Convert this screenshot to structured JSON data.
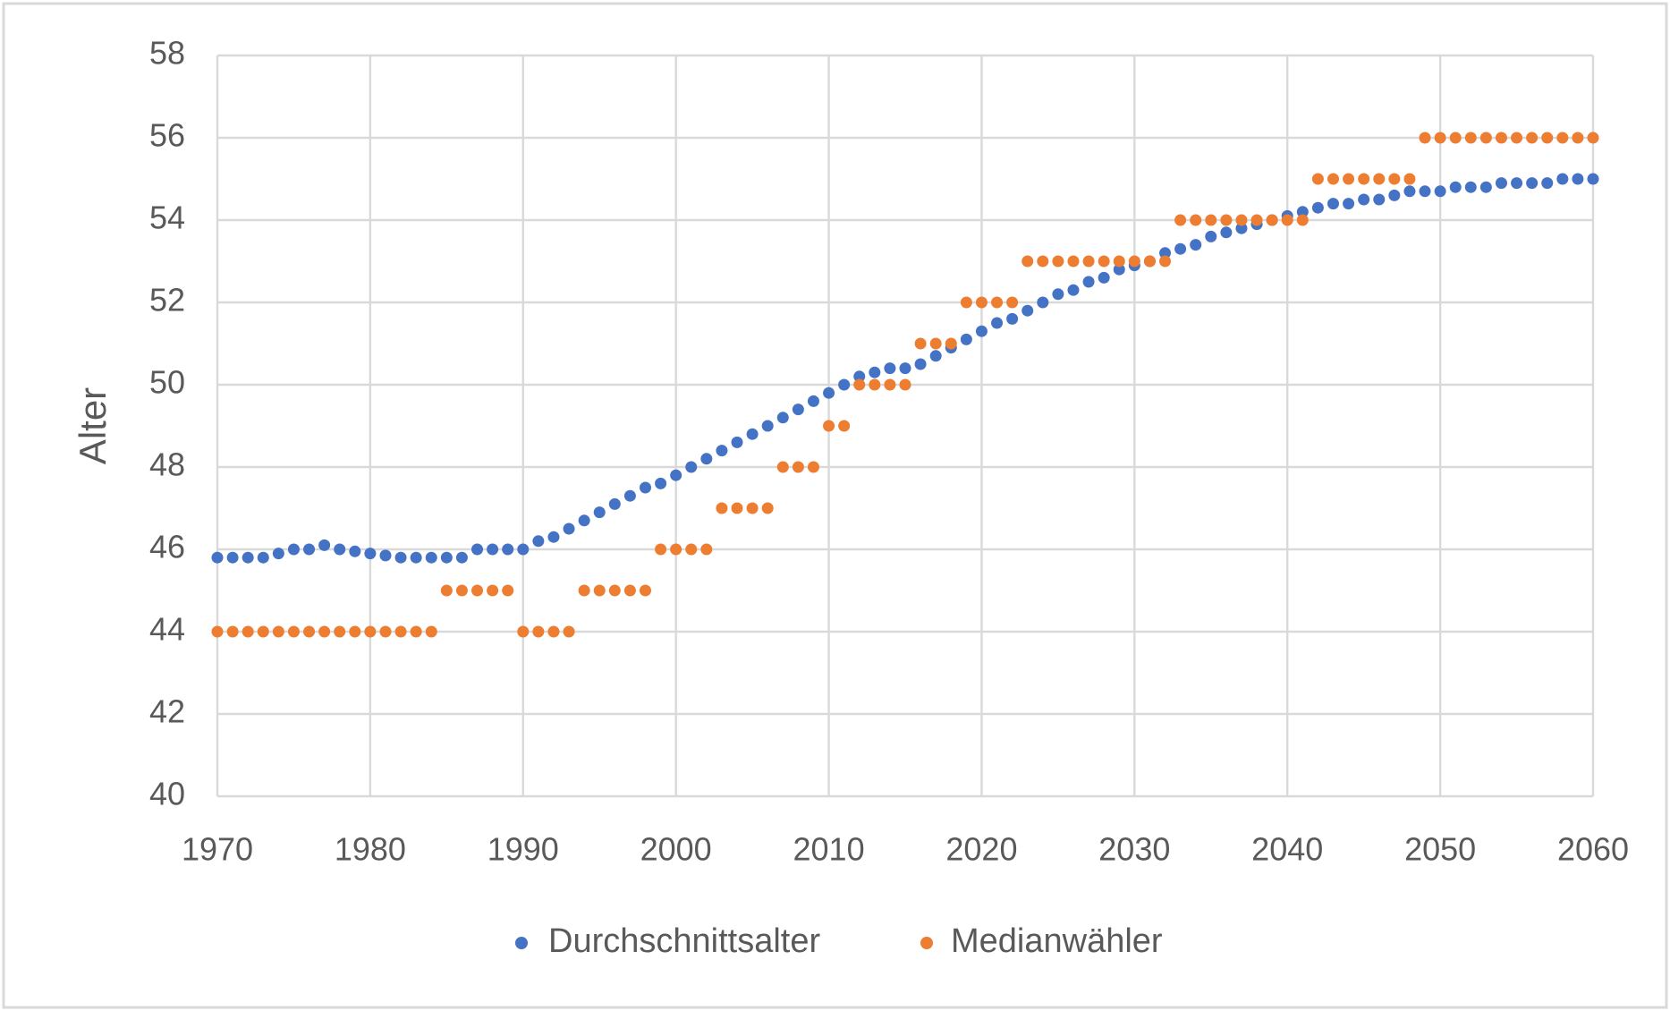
{
  "chart_data": {
    "type": "scatter",
    "y_label": "Alter",
    "x": [
      1970,
      1971,
      1972,
      1973,
      1974,
      1975,
      1976,
      1977,
      1978,
      1979,
      1980,
      1981,
      1982,
      1983,
      1984,
      1985,
      1986,
      1987,
      1988,
      1989,
      1990,
      1991,
      1992,
      1993,
      1994,
      1995,
      1996,
      1997,
      1998,
      1999,
      2000,
      2001,
      2002,
      2003,
      2004,
      2005,
      2006,
      2007,
      2008,
      2009,
      2010,
      2011,
      2012,
      2013,
      2014,
      2015,
      2016,
      2017,
      2018,
      2019,
      2020,
      2021,
      2022,
      2023,
      2024,
      2025,
      2026,
      2027,
      2028,
      2029,
      2030,
      2031,
      2032,
      2033,
      2034,
      2035,
      2036,
      2037,
      2038,
      2039,
      2040,
      2041,
      2042,
      2043,
      2044,
      2045,
      2046,
      2047,
      2048,
      2049,
      2050,
      2051,
      2052,
      2053,
      2054,
      2055,
      2056,
      2057,
      2058,
      2059,
      2060
    ],
    "series": [
      {
        "name": "Durchschnittsalter",
        "color": "#4472c4",
        "values": [
          45.8,
          45.8,
          45.8,
          45.8,
          45.9,
          46.0,
          46.0,
          46.1,
          46.0,
          45.95,
          45.9,
          45.85,
          45.8,
          45.8,
          45.8,
          45.8,
          45.8,
          46.0,
          46.0,
          46.0,
          46.0,
          46.2,
          46.3,
          46.5,
          46.7,
          46.9,
          47.1,
          47.3,
          47.5,
          47.6,
          47.8,
          48.0,
          48.2,
          48.4,
          48.6,
          48.8,
          49.0,
          49.2,
          49.4,
          49.6,
          49.8,
          50.0,
          50.2,
          50.3,
          50.4,
          50.4,
          50.5,
          50.7,
          50.9,
          51.1,
          51.3,
          51.5,
          51.6,
          51.8,
          52.0,
          52.2,
          52.3,
          52.5,
          52.6,
          52.8,
          52.9,
          53.0,
          53.2,
          53.3,
          53.4,
          53.6,
          53.7,
          53.8,
          53.9,
          54.0,
          54.1,
          54.2,
          54.3,
          54.4,
          54.4,
          54.5,
          54.5,
          54.6,
          54.7,
          54.7,
          54.7,
          54.8,
          54.8,
          54.8,
          54.9,
          54.9,
          54.9,
          54.9,
          55.0,
          55.0,
          55.0
        ]
      },
      {
        "name": "Medianwähler",
        "color": "#ed7d31",
        "values": [
          44,
          44,
          44,
          44,
          44,
          44,
          44,
          44,
          44,
          44,
          44,
          44,
          44,
          44,
          44,
          45,
          45,
          45,
          45,
          45,
          44,
          44,
          44,
          44,
          45,
          45,
          45,
          45,
          45,
          46,
          46,
          46,
          46,
          47,
          47,
          47,
          47,
          48,
          48,
          48,
          49,
          49,
          50,
          50,
          50,
          50,
          51,
          51,
          51,
          52,
          52,
          52,
          52,
          53,
          53,
          53,
          53,
          53,
          53,
          53,
          53,
          53,
          53,
          54,
          54,
          54,
          54,
          54,
          54,
          54,
          54,
          54,
          55,
          55,
          55,
          55,
          55,
          55,
          55,
          56,
          56,
          56,
          56,
          56,
          56,
          56,
          56,
          56,
          56,
          56,
          56
        ]
      }
    ],
    "xlim": [
      1970,
      2060
    ],
    "xticks": [
      1970,
      1980,
      1990,
      2000,
      2010,
      2020,
      2030,
      2040,
      2050,
      2060
    ],
    "ylim": [
      40,
      58
    ],
    "yticks": [
      40,
      42,
      44,
      46,
      48,
      50,
      52,
      54,
      56,
      58
    ],
    "grid": true,
    "legend": "bottom"
  }
}
